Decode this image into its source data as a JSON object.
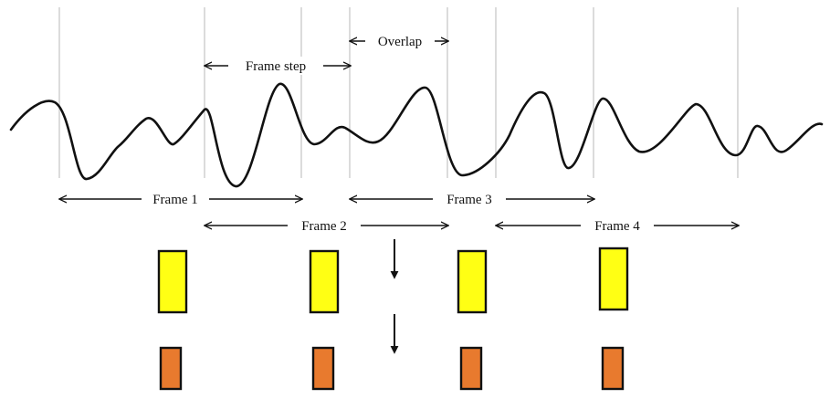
{
  "labels": {
    "frame_step": "Frame step",
    "overlap": "Overlap",
    "frame_1": "Frame 1",
    "frame_2": "Frame 2",
    "frame_3": "Frame 3",
    "frame_4": "Frame 4"
  },
  "colors": {
    "signal": "#111111",
    "gridline": "#c8c8c8",
    "stage1_fill": "#ffff14",
    "stage2_fill": "#e87a2e",
    "block_stroke": "#111111"
  }
}
